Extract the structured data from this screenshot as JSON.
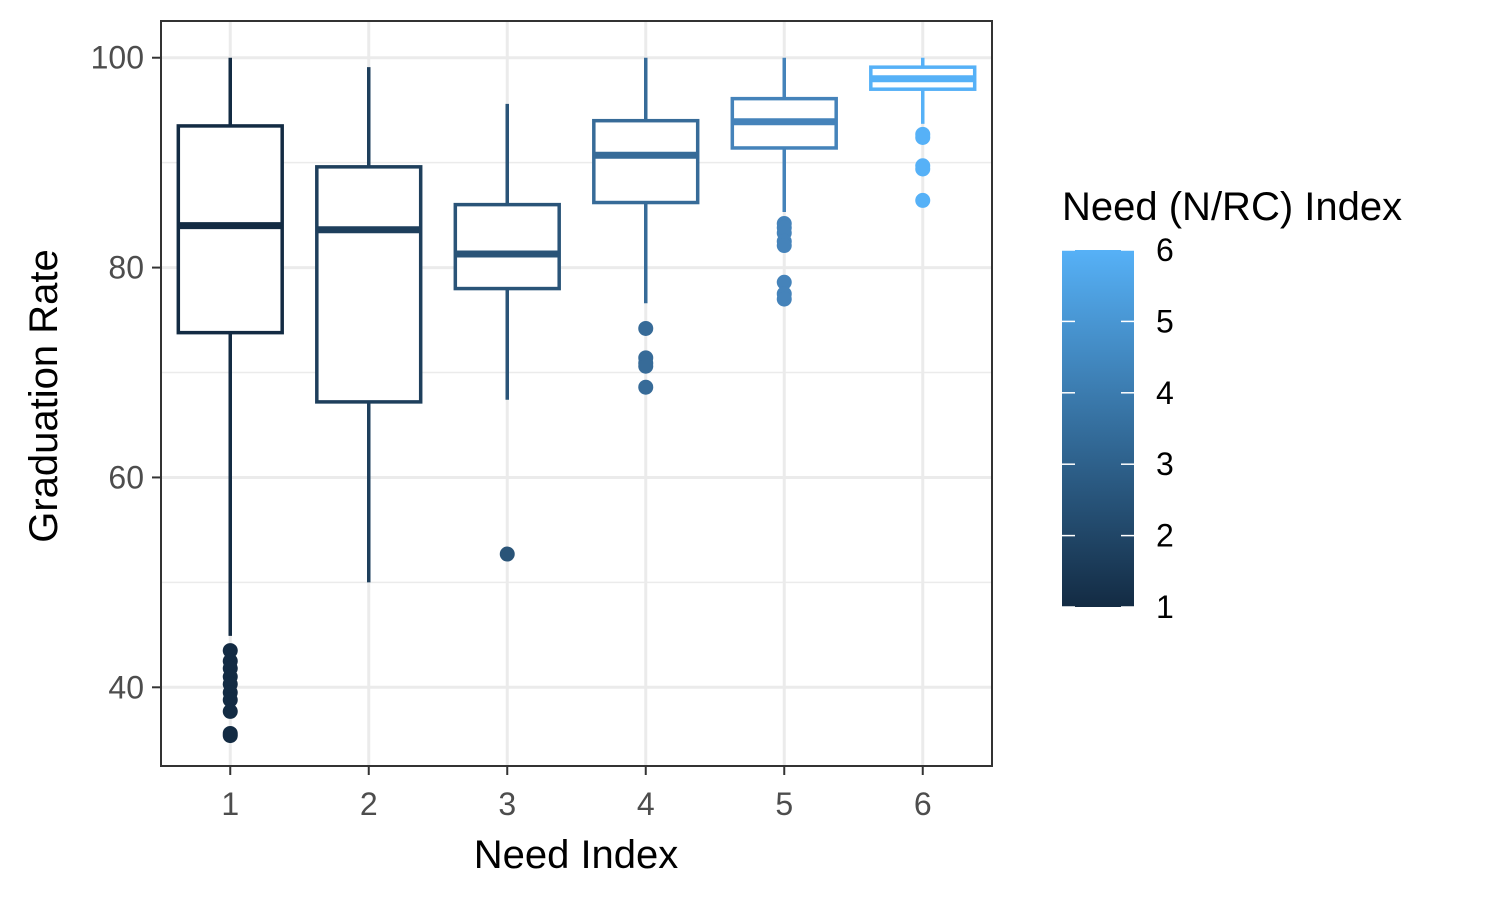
{
  "chart_data": {
    "type": "boxplot",
    "xlabel": "Need Index",
    "ylabel": "Graduation Rate",
    "categories": [
      "1",
      "2",
      "3",
      "4",
      "5",
      "6"
    ],
    "ylim": [
      32.5,
      103.5
    ],
    "yticks": [
      40,
      60,
      80,
      100
    ],
    "grid": true,
    "boxes": [
      {
        "category": "1",
        "color": "#132B43",
        "whisker_low": 44.9,
        "q1": 73.8,
        "median": 84.0,
        "q3": 93.5,
        "whisker_high": 100,
        "outliers": [
          43.5,
          42.5,
          41.8,
          41.0,
          40.3,
          39.5,
          38.8,
          37.7,
          35.6,
          35.4
        ]
      },
      {
        "category": "2",
        "color": "#1E3F5C",
        "whisker_low": 50.0,
        "q1": 67.2,
        "median": 83.6,
        "q3": 89.6,
        "whisker_high": 99.1,
        "outliers": []
      },
      {
        "category": "3",
        "color": "#2A5478",
        "whisker_low": 67.4,
        "q1": 78.0,
        "median": 81.3,
        "q3": 86.0,
        "whisker_high": 95.6,
        "outliers": [
          52.7
        ]
      },
      {
        "category": "4",
        "color": "#376B98",
        "whisker_low": 76.6,
        "q1": 86.2,
        "median": 90.7,
        "q3": 94.0,
        "whisker_high": 100,
        "outliers": [
          74.2,
          71.4,
          70.9,
          70.6,
          68.6
        ]
      },
      {
        "category": "5",
        "color": "#4583BA",
        "whisker_low": 85.3,
        "q1": 91.4,
        "median": 93.9,
        "q3": 96.1,
        "whisker_high": 100,
        "outliers": [
          84.2,
          83.8,
          83.3,
          82.5,
          82.1,
          78.6,
          77.5,
          77.0
        ]
      },
      {
        "category": "6",
        "color": "#56B1F7",
        "whisker_low": 93.7,
        "q1": 97.0,
        "median": 98.0,
        "q3": 99.1,
        "whisker_high": 100,
        "outliers": [
          92.7,
          92.4,
          89.7,
          89.4,
          86.4
        ]
      }
    ],
    "legend": {
      "title": "Need (N/RC) Index",
      "position": "right",
      "type": "colorbar",
      "low_color": "#132B43",
      "high_color": "#56B1F7",
      "min": 1,
      "max": 6,
      "labels": [
        "1",
        "2",
        "3",
        "4",
        "5",
        "6"
      ]
    }
  }
}
